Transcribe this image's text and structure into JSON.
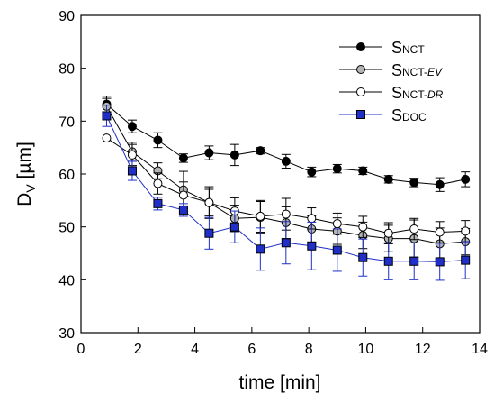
{
  "chart_data": {
    "type": "line",
    "xlabel": "time [min]",
    "ylabel_main": "D",
    "ylabel_sub": "V",
    "ylabel_rest": " [µm]",
    "xlim": [
      0,
      14
    ],
    "ylim": [
      30,
      90
    ],
    "xticks": [
      0,
      2,
      4,
      6,
      8,
      10,
      12,
      14
    ],
    "yticks": [
      30,
      40,
      50,
      60,
      70,
      80,
      90
    ],
    "grid": false,
    "legend_position": "top-right",
    "x": [
      0.9,
      1.8,
      2.7,
      3.6,
      4.5,
      5.4,
      6.3,
      7.2,
      8.1,
      9.0,
      9.9,
      10.8,
      11.7,
      12.6,
      13.5
    ],
    "series": [
      {
        "name": "SNCT",
        "legend_main": "S",
        "legend_sub": "NCT",
        "legend_sub_italic": "",
        "color": "#000000",
        "marker": "circle",
        "marker_fill": "#000000",
        "values": [
          73.2,
          69.0,
          66.4,
          63.0,
          64.0,
          63.6,
          64.4,
          62.4,
          60.4,
          61.0,
          60.6,
          59.0,
          58.4,
          58.0,
          59.0
        ],
        "errors": [
          1.5,
          1.2,
          1.4,
          0.8,
          1.3,
          2.0,
          0.6,
          1.3,
          0.9,
          0.8,
          0.7,
          0.7,
          0.8,
          1.3,
          1.4
        ]
      },
      {
        "name": "SNCT-EV",
        "legend_main": "S",
        "legend_sub": "NCT-",
        "legend_sub_italic": "EV",
        "color": "#000000",
        "marker": "circle",
        "marker_fill": "#b4b4b4",
        "values": [
          72.8,
          64.2,
          60.6,
          57.0,
          54.6,
          51.6,
          51.8,
          50.8,
          49.6,
          49.2,
          48.4,
          47.8,
          47.8,
          46.8,
          47.2
        ],
        "errors": [
          1.5,
          1.8,
          1.5,
          3.5,
          3.0,
          2.5,
          3.0,
          3.0,
          2.5,
          2.5,
          2.5,
          2.5,
          3.5,
          3.0,
          2.5
        ]
      },
      {
        "name": "SNCT-DR",
        "legend_main": "S",
        "legend_sub": "NCT-",
        "legend_sub_italic": "DR",
        "color": "#000000",
        "marker": "circle",
        "marker_fill": "#ffffff",
        "values": [
          66.8,
          63.6,
          58.2,
          56.0,
          54.6,
          53.0,
          52.0,
          52.4,
          51.6,
          50.6,
          50.0,
          48.8,
          49.6,
          49.0,
          49.2
        ],
        "errors": [
          0,
          2.0,
          2.0,
          2.5,
          2.5,
          2.5,
          3.0,
          3.0,
          2.0,
          2.0,
          2.0,
          2.0,
          2.0,
          2.0,
          2.0
        ]
      },
      {
        "name": "SDOC",
        "legend_main": "S",
        "legend_sub": "DOC",
        "legend_sub_italic": "",
        "color": "#1f2fc8",
        "marker": "square",
        "marker_fill": "#1f2fc8",
        "values": [
          71.0,
          60.6,
          54.4,
          53.2,
          48.8,
          50.0,
          45.8,
          47.0,
          46.4,
          45.6,
          44.2,
          43.5,
          43.5,
          43.4,
          43.7
        ],
        "errors": [
          2.0,
          1.8,
          1.2,
          1.2,
          3.0,
          3.0,
          4.0,
          4.0,
          4.5,
          4.0,
          3.5,
          3.5,
          3.5,
          3.5,
          3.5
        ]
      }
    ]
  }
}
